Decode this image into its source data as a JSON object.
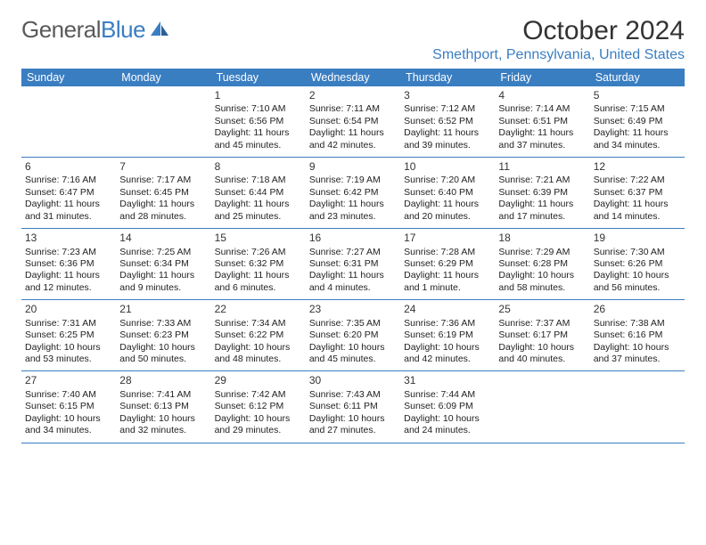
{
  "logo": {
    "text1": "General",
    "text2": "Blue"
  },
  "title": "October 2024",
  "location": "Smethport, Pennsylvania, United States",
  "colors": {
    "header_bg": "#3a7ec2",
    "header_text": "#ffffff",
    "row_border": "#3a7ec2",
    "body_text": "#222222",
    "title_text": "#333333",
    "location_text": "#3a7ec2",
    "logo_gray": "#5a5a5a",
    "logo_blue": "#3a7ec2",
    "background": "#ffffff"
  },
  "day_names": [
    "Sunday",
    "Monday",
    "Tuesday",
    "Wednesday",
    "Thursday",
    "Friday",
    "Saturday"
  ],
  "weeks": [
    [
      null,
      null,
      {
        "n": "1",
        "sr": "Sunrise: 7:10 AM",
        "ss": "Sunset: 6:56 PM",
        "dl": "Daylight: 11 hours and 45 minutes."
      },
      {
        "n": "2",
        "sr": "Sunrise: 7:11 AM",
        "ss": "Sunset: 6:54 PM",
        "dl": "Daylight: 11 hours and 42 minutes."
      },
      {
        "n": "3",
        "sr": "Sunrise: 7:12 AM",
        "ss": "Sunset: 6:52 PM",
        "dl": "Daylight: 11 hours and 39 minutes."
      },
      {
        "n": "4",
        "sr": "Sunrise: 7:14 AM",
        "ss": "Sunset: 6:51 PM",
        "dl": "Daylight: 11 hours and 37 minutes."
      },
      {
        "n": "5",
        "sr": "Sunrise: 7:15 AM",
        "ss": "Sunset: 6:49 PM",
        "dl": "Daylight: 11 hours and 34 minutes."
      }
    ],
    [
      {
        "n": "6",
        "sr": "Sunrise: 7:16 AM",
        "ss": "Sunset: 6:47 PM",
        "dl": "Daylight: 11 hours and 31 minutes."
      },
      {
        "n": "7",
        "sr": "Sunrise: 7:17 AM",
        "ss": "Sunset: 6:45 PM",
        "dl": "Daylight: 11 hours and 28 minutes."
      },
      {
        "n": "8",
        "sr": "Sunrise: 7:18 AM",
        "ss": "Sunset: 6:44 PM",
        "dl": "Daylight: 11 hours and 25 minutes."
      },
      {
        "n": "9",
        "sr": "Sunrise: 7:19 AM",
        "ss": "Sunset: 6:42 PM",
        "dl": "Daylight: 11 hours and 23 minutes."
      },
      {
        "n": "10",
        "sr": "Sunrise: 7:20 AM",
        "ss": "Sunset: 6:40 PM",
        "dl": "Daylight: 11 hours and 20 minutes."
      },
      {
        "n": "11",
        "sr": "Sunrise: 7:21 AM",
        "ss": "Sunset: 6:39 PM",
        "dl": "Daylight: 11 hours and 17 minutes."
      },
      {
        "n": "12",
        "sr": "Sunrise: 7:22 AM",
        "ss": "Sunset: 6:37 PM",
        "dl": "Daylight: 11 hours and 14 minutes."
      }
    ],
    [
      {
        "n": "13",
        "sr": "Sunrise: 7:23 AM",
        "ss": "Sunset: 6:36 PM",
        "dl": "Daylight: 11 hours and 12 minutes."
      },
      {
        "n": "14",
        "sr": "Sunrise: 7:25 AM",
        "ss": "Sunset: 6:34 PM",
        "dl": "Daylight: 11 hours and 9 minutes."
      },
      {
        "n": "15",
        "sr": "Sunrise: 7:26 AM",
        "ss": "Sunset: 6:32 PM",
        "dl": "Daylight: 11 hours and 6 minutes."
      },
      {
        "n": "16",
        "sr": "Sunrise: 7:27 AM",
        "ss": "Sunset: 6:31 PM",
        "dl": "Daylight: 11 hours and 4 minutes."
      },
      {
        "n": "17",
        "sr": "Sunrise: 7:28 AM",
        "ss": "Sunset: 6:29 PM",
        "dl": "Daylight: 11 hours and 1 minute."
      },
      {
        "n": "18",
        "sr": "Sunrise: 7:29 AM",
        "ss": "Sunset: 6:28 PM",
        "dl": "Daylight: 10 hours and 58 minutes."
      },
      {
        "n": "19",
        "sr": "Sunrise: 7:30 AM",
        "ss": "Sunset: 6:26 PM",
        "dl": "Daylight: 10 hours and 56 minutes."
      }
    ],
    [
      {
        "n": "20",
        "sr": "Sunrise: 7:31 AM",
        "ss": "Sunset: 6:25 PM",
        "dl": "Daylight: 10 hours and 53 minutes."
      },
      {
        "n": "21",
        "sr": "Sunrise: 7:33 AM",
        "ss": "Sunset: 6:23 PM",
        "dl": "Daylight: 10 hours and 50 minutes."
      },
      {
        "n": "22",
        "sr": "Sunrise: 7:34 AM",
        "ss": "Sunset: 6:22 PM",
        "dl": "Daylight: 10 hours and 48 minutes."
      },
      {
        "n": "23",
        "sr": "Sunrise: 7:35 AM",
        "ss": "Sunset: 6:20 PM",
        "dl": "Daylight: 10 hours and 45 minutes."
      },
      {
        "n": "24",
        "sr": "Sunrise: 7:36 AM",
        "ss": "Sunset: 6:19 PM",
        "dl": "Daylight: 10 hours and 42 minutes."
      },
      {
        "n": "25",
        "sr": "Sunrise: 7:37 AM",
        "ss": "Sunset: 6:17 PM",
        "dl": "Daylight: 10 hours and 40 minutes."
      },
      {
        "n": "26",
        "sr": "Sunrise: 7:38 AM",
        "ss": "Sunset: 6:16 PM",
        "dl": "Daylight: 10 hours and 37 minutes."
      }
    ],
    [
      {
        "n": "27",
        "sr": "Sunrise: 7:40 AM",
        "ss": "Sunset: 6:15 PM",
        "dl": "Daylight: 10 hours and 34 minutes."
      },
      {
        "n": "28",
        "sr": "Sunrise: 7:41 AM",
        "ss": "Sunset: 6:13 PM",
        "dl": "Daylight: 10 hours and 32 minutes."
      },
      {
        "n": "29",
        "sr": "Sunrise: 7:42 AM",
        "ss": "Sunset: 6:12 PM",
        "dl": "Daylight: 10 hours and 29 minutes."
      },
      {
        "n": "30",
        "sr": "Sunrise: 7:43 AM",
        "ss": "Sunset: 6:11 PM",
        "dl": "Daylight: 10 hours and 27 minutes."
      },
      {
        "n": "31",
        "sr": "Sunrise: 7:44 AM",
        "ss": "Sunset: 6:09 PM",
        "dl": "Daylight: 10 hours and 24 minutes."
      },
      null,
      null
    ]
  ]
}
